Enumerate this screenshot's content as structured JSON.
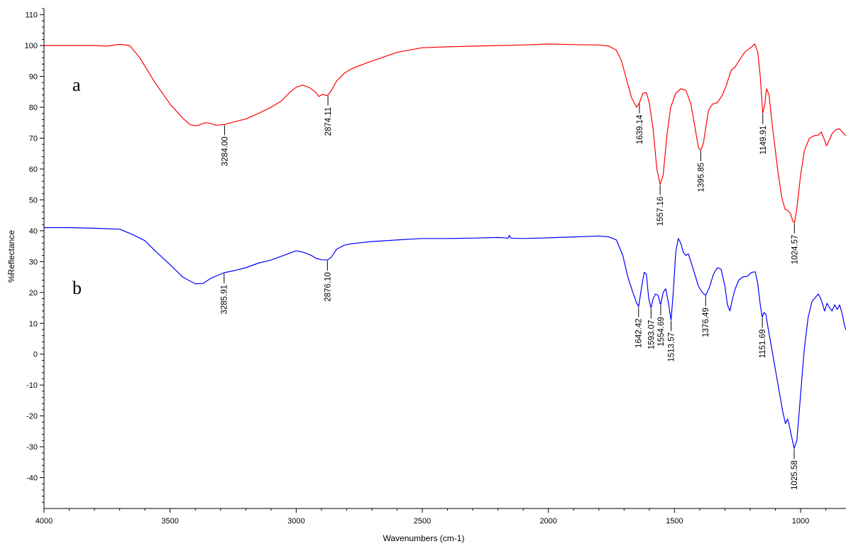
{
  "chart_data": {
    "type": "line",
    "xlabel": "Wavenumbers (cm-1)",
    "ylabel": "%Reflectance",
    "xlim": [
      4000,
      820
    ],
    "ylim": [
      -50,
      112
    ],
    "x_reversed": true,
    "x_ticks": [
      4000,
      3500,
      3000,
      2500,
      2000,
      1500,
      1000
    ],
    "y_ticks": [
      110,
      100,
      90,
      80,
      70,
      60,
      50,
      40,
      30,
      20,
      10,
      0,
      -10,
      -20,
      -30,
      -40
    ],
    "grid": false,
    "series": [
      {
        "name": "a",
        "color": "#ff0000",
        "points": [
          [
            4000,
            100
          ],
          [
            3800,
            100
          ],
          [
            3750,
            99.8
          ],
          [
            3700,
            100.4
          ],
          [
            3660,
            100
          ],
          [
            3620,
            96
          ],
          [
            3560,
            88
          ],
          [
            3500,
            81
          ],
          [
            3450,
            76.5
          ],
          [
            3420,
            74.3
          ],
          [
            3395,
            74
          ],
          [
            3360,
            75
          ],
          [
            3340,
            74.8
          ],
          [
            3320,
            74.2
          ],
          [
            3300,
            74.3
          ],
          [
            3284,
            74.4
          ],
          [
            3250,
            75.2
          ],
          [
            3200,
            76.2
          ],
          [
            3150,
            78
          ],
          [
            3100,
            80
          ],
          [
            3060,
            82
          ],
          [
            3030,
            84.5
          ],
          [
            3000,
            86.5
          ],
          [
            2975,
            87.2
          ],
          [
            2950,
            86.5
          ],
          [
            2925,
            85
          ],
          [
            2910,
            83.5
          ],
          [
            2895,
            84.2
          ],
          [
            2880,
            83.8
          ],
          [
            2874,
            84
          ],
          [
            2860,
            85.5
          ],
          [
            2840,
            88.5
          ],
          [
            2810,
            91
          ],
          [
            2780,
            92.5
          ],
          [
            2700,
            95
          ],
          [
            2600,
            97.8
          ],
          [
            2500,
            99.3
          ],
          [
            2400,
            99.6
          ],
          [
            2300,
            99.8
          ],
          [
            2200,
            100
          ],
          [
            2100,
            100.2
          ],
          [
            2000,
            100.5
          ],
          [
            1900,
            100.3
          ],
          [
            1800,
            100.2
          ],
          [
            1760,
            99.8
          ],
          [
            1730,
            98.5
          ],
          [
            1710,
            95
          ],
          [
            1690,
            89
          ],
          [
            1670,
            83
          ],
          [
            1650,
            80
          ],
          [
            1639,
            81.5
          ],
          [
            1625,
            84.5
          ],
          [
            1612,
            84.8
          ],
          [
            1600,
            81.5
          ],
          [
            1585,
            73
          ],
          [
            1570,
            60
          ],
          [
            1557,
            55
          ],
          [
            1545,
            58
          ],
          [
            1530,
            71
          ],
          [
            1515,
            80
          ],
          [
            1495,
            84.5
          ],
          [
            1475,
            86
          ],
          [
            1455,
            85.5
          ],
          [
            1435,
            81
          ],
          [
            1420,
            74
          ],
          [
            1405,
            67
          ],
          [
            1396,
            66
          ],
          [
            1385,
            68.5
          ],
          [
            1375,
            74
          ],
          [
            1365,
            79
          ],
          [
            1350,
            81
          ],
          [
            1330,
            81.5
          ],
          [
            1310,
            84
          ],
          [
            1295,
            87
          ],
          [
            1275,
            92
          ],
          [
            1260,
            93
          ],
          [
            1245,
            95
          ],
          [
            1220,
            98
          ],
          [
            1195,
            99.5
          ],
          [
            1182,
            100.5
          ],
          [
            1170,
            98
          ],
          [
            1160,
            90
          ],
          [
            1150,
            78
          ],
          [
            1142,
            81
          ],
          [
            1135,
            86
          ],
          [
            1125,
            84
          ],
          [
            1112,
            74
          ],
          [
            1100,
            66
          ],
          [
            1090,
            59
          ],
          [
            1075,
            51
          ],
          [
            1062,
            47
          ],
          [
            1050,
            46.5
          ],
          [
            1040,
            45.5
          ],
          [
            1030,
            43
          ],
          [
            1024.6,
            42.6
          ],
          [
            1015,
            47
          ],
          [
            1000,
            58
          ],
          [
            985,
            66
          ],
          [
            965,
            70
          ],
          [
            945,
            70.8
          ],
          [
            930,
            71
          ],
          [
            918,
            72
          ],
          [
            908,
            70
          ],
          [
            897,
            67.5
          ],
          [
            888,
            69
          ],
          [
            875,
            71.5
          ],
          [
            860,
            72.8
          ],
          [
            845,
            73
          ],
          [
            832,
            71.7
          ],
          [
            820,
            70.8
          ]
        ]
      },
      {
        "name": "b",
        "color": "#0000ff",
        "points": [
          [
            4000,
            41
          ],
          [
            3900,
            41
          ],
          [
            3800,
            40.8
          ],
          [
            3700,
            40.5
          ],
          [
            3650,
            38.8
          ],
          [
            3600,
            36.8
          ],
          [
            3560,
            33.5
          ],
          [
            3500,
            29
          ],
          [
            3450,
            25
          ],
          [
            3400,
            22.8
          ],
          [
            3370,
            22.9
          ],
          [
            3340,
            24.5
          ],
          [
            3310,
            25.6
          ],
          [
            3286,
            26.4
          ],
          [
            3250,
            27
          ],
          [
            3200,
            28
          ],
          [
            3150,
            29.5
          ],
          [
            3100,
            30.5
          ],
          [
            3050,
            32
          ],
          [
            3000,
            33.5
          ],
          [
            2970,
            33
          ],
          [
            2940,
            32
          ],
          [
            2920,
            31
          ],
          [
            2900,
            30.6
          ],
          [
            2876,
            30.5
          ],
          [
            2860,
            31.5
          ],
          [
            2840,
            34
          ],
          [
            2810,
            35.3
          ],
          [
            2780,
            35.8
          ],
          [
            2700,
            36.5
          ],
          [
            2600,
            37
          ],
          [
            2500,
            37.5
          ],
          [
            2400,
            37.5
          ],
          [
            2300,
            37.6
          ],
          [
            2200,
            37.8
          ],
          [
            2160,
            37.6
          ],
          [
            2155,
            38.5
          ],
          [
            2150,
            37.6
          ],
          [
            2100,
            37.5
          ],
          [
            2000,
            37.7
          ],
          [
            1900,
            38
          ],
          [
            1800,
            38.3
          ],
          [
            1760,
            38
          ],
          [
            1730,
            37
          ],
          [
            1705,
            32
          ],
          [
            1685,
            25
          ],
          [
            1665,
            20
          ],
          [
            1650,
            16.5
          ],
          [
            1642,
            15.5
          ],
          [
            1630,
            22
          ],
          [
            1620,
            26.5
          ],
          [
            1612,
            26
          ],
          [
            1602,
            18
          ],
          [
            1593,
            15
          ],
          [
            1585,
            18
          ],
          [
            1575,
            19.5
          ],
          [
            1565,
            19
          ],
          [
            1555,
            16
          ],
          [
            1545,
            20
          ],
          [
            1535,
            21.2
          ],
          [
            1525,
            17
          ],
          [
            1513.6,
            11
          ],
          [
            1505,
            20
          ],
          [
            1495,
            33
          ],
          [
            1485,
            37.5
          ],
          [
            1475,
            36
          ],
          [
            1465,
            33
          ],
          [
            1455,
            32
          ],
          [
            1445,
            32.5
          ],
          [
            1435,
            30
          ],
          [
            1420,
            26
          ],
          [
            1405,
            22
          ],
          [
            1390,
            20
          ],
          [
            1376.5,
            19
          ],
          [
            1360,
            22
          ],
          [
            1345,
            26
          ],
          [
            1330,
            28
          ],
          [
            1315,
            27.5
          ],
          [
            1300,
            22
          ],
          [
            1290,
            16
          ],
          [
            1280,
            14
          ],
          [
            1270,
            18
          ],
          [
            1260,
            21
          ],
          [
            1245,
            24
          ],
          [
            1230,
            25
          ],
          [
            1210,
            25.3
          ],
          [
            1195,
            26.5
          ],
          [
            1180,
            26.7
          ],
          [
            1170,
            23
          ],
          [
            1160,
            16
          ],
          [
            1152,
            12
          ],
          [
            1145,
            13.5
          ],
          [
            1138,
            13
          ],
          [
            1128,
            8
          ],
          [
            1115,
            2
          ],
          [
            1100,
            -5
          ],
          [
            1085,
            -12
          ],
          [
            1070,
            -19
          ],
          [
            1060,
            -22.5
          ],
          [
            1052,
            -21
          ],
          [
            1045,
            -23
          ],
          [
            1035,
            -27
          ],
          [
            1025.6,
            -30.5
          ],
          [
            1015,
            -28
          ],
          [
            1005,
            -18
          ],
          [
            995,
            -8
          ],
          [
            985,
            2
          ],
          [
            970,
            12
          ],
          [
            955,
            17
          ],
          [
            940,
            18.5
          ],
          [
            930,
            19.5
          ],
          [
            920,
            18
          ],
          [
            912,
            16
          ],
          [
            905,
            14
          ],
          [
            895,
            16.5
          ],
          [
            885,
            15
          ],
          [
            875,
            14
          ],
          [
            865,
            16
          ],
          [
            855,
            14.5
          ],
          [
            845,
            16
          ],
          [
            835,
            13
          ],
          [
            825,
            9
          ],
          [
            820,
            7.8
          ]
        ]
      }
    ],
    "peak_labels": [
      {
        "series": "a",
        "label": "3284.00",
        "x": 3284.0,
        "y": 74.4
      },
      {
        "series": "a",
        "label": "2874.11",
        "x": 2874.11,
        "y": 84
      },
      {
        "series": "a",
        "label": "1639.14",
        "x": 1639.14,
        "y": 81.5
      },
      {
        "series": "a",
        "label": "1557.16",
        "x": 1557.16,
        "y": 55
      },
      {
        "series": "a",
        "label": "1395.85",
        "x": 1395.85,
        "y": 66
      },
      {
        "series": "a",
        "label": "1149.91",
        "x": 1149.91,
        "y": 78
      },
      {
        "series": "a",
        "label": "1024.57",
        "x": 1024.57,
        "y": 42.6
      },
      {
        "series": "b",
        "label": "3285.91",
        "x": 3285.91,
        "y": 26.4
      },
      {
        "series": "b",
        "label": "2876.10",
        "x": 2876.1,
        "y": 30.5
      },
      {
        "series": "b",
        "label": "1642.42",
        "x": 1642.42,
        "y": 15.5
      },
      {
        "series": "b",
        "label": "1593.07",
        "x": 1593.07,
        "y": 15
      },
      {
        "series": "b",
        "label": "1554.69",
        "x": 1554.69,
        "y": 16
      },
      {
        "series": "b",
        "label": "1513.57",
        "x": 1513.57,
        "y": 11
      },
      {
        "series": "b",
        "label": "1376.49",
        "x": 1376.49,
        "y": 19
      },
      {
        "series": "b",
        "label": "1151.69",
        "x": 1151.69,
        "y": 12
      },
      {
        "series": "b",
        "label": "1025.58",
        "x": 1025.58,
        "y": -30.5
      }
    ]
  },
  "curve_labels": {
    "a": "a",
    "b": "b"
  }
}
